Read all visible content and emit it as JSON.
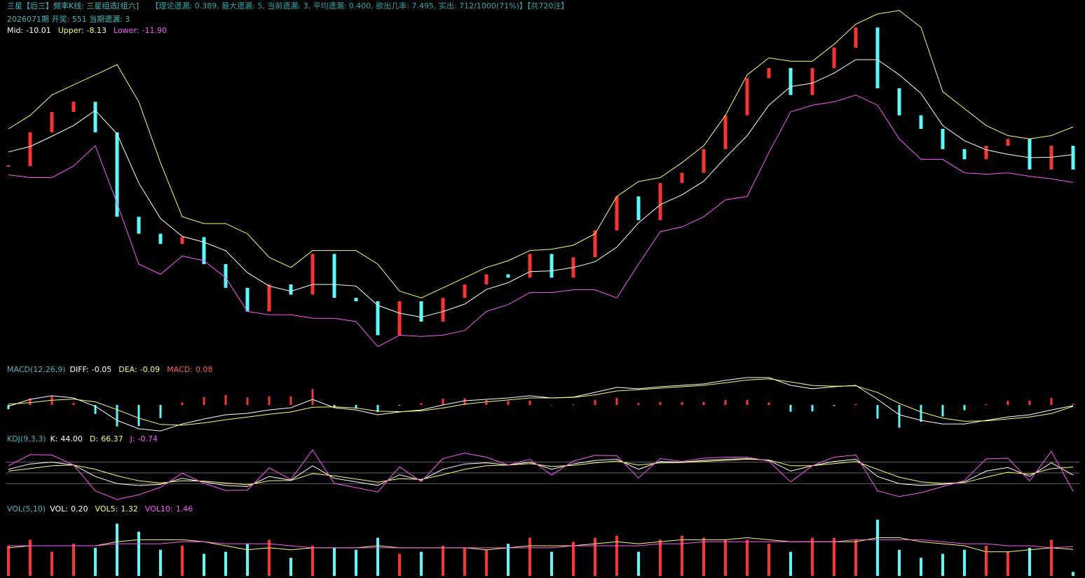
{
  "header": {
    "title": "三星【后三】频率K线: 三星组选[组六]",
    "stats": "【理论遗漏: 0.389, 最大遗漏: 5, 当前遗漏: 3, 平均遗漏: 0.400, 欲出几率: 7.495, 实出: 712/1000(71%)】【共720注】",
    "issue": "2026071期 开奖: 551 当期遗漏: 3"
  },
  "chart_data": [
    {
      "type": "kline",
      "up_color": "#ff3232",
      "down_color": "#54fcfc",
      "ylim": [
        -24,
        0
      ],
      "values": [
        -10.79,
        -8.5,
        -7.12,
        -6.43,
        -8.5,
        -14.23,
        -15.38,
        -16.07,
        -15.61,
        -17.44,
        -19.05,
        -20.65,
        -18.82,
        -19.51,
        -16.75,
        -19.73,
        -19.96,
        -22.26,
        -19.96,
        -21.34,
        -19.73,
        -18.82,
        -18.13,
        -18.36,
        -16.75,
        -18.36,
        -16.98,
        -15.15,
        -12.85,
        -14.46,
        -11.94,
        -11.25,
        -9.64,
        -7.35,
        -4.83,
        -4.14,
        -5.97,
        -4.14,
        -2.76,
        -1.39,
        -5.51,
        -7.35,
        -8.27,
        -9.64,
        -10.33,
        -9.41,
        -8.95,
        -11.02,
        -9.41,
        -11.02
      ],
      "series": [
        {
          "name": "Mid:",
          "color": "#ffffff",
          "readout": "-10.01",
          "values": [
            -9.83,
            -9.46,
            -8.77,
            -8.04,
            -7.01,
            -8.61,
            -11.94,
            -14.35,
            -15.56,
            -15.95,
            -16.53,
            -18.02,
            -18.93,
            -19.28,
            -18.82,
            -18.82,
            -18.93,
            -20.24,
            -20.77,
            -21.04,
            -20.66,
            -20.15,
            -19.16,
            -18.7,
            -17.95,
            -17.9,
            -17.67,
            -17.28,
            -16.29,
            -14.64,
            -13.41,
            -12.74,
            -11.82,
            -10.22,
            -8.73,
            -6.66,
            -5.4,
            -5.17,
            -4.48,
            -3.57,
            -3.57,
            -4.6,
            -5.86,
            -8.04,
            -9.07,
            -9.69,
            -9.99,
            -10.22,
            -10.19,
            -10.01
          ]
        },
        {
          "name": "Upper:",
          "color": "#ffff54",
          "readout": "-8.13",
          "values": [
            -8.27,
            -7.35,
            -5.97,
            -5.28,
            -4.6,
            -3.91,
            -6.43,
            -10.56,
            -14.23,
            -14.69,
            -14.69,
            -15.38,
            -16.98,
            -17.67,
            -16.52,
            -16.52,
            -16.52,
            -17.44,
            -19.27,
            -19.73,
            -19.05,
            -18.36,
            -17.67,
            -17.21,
            -16.52,
            -16.43,
            -16.16,
            -15.38,
            -12.85,
            -11.84,
            -11.57,
            -10.56,
            -9.41,
            -7.35,
            -4.6,
            -3.45,
            -3.68,
            -3.68,
            -2.53,
            -1.16,
            -0.47,
            -0.24,
            -1.38,
            -5.74,
            -6.89,
            -8.04,
            -8.72,
            -8.95,
            -8.72,
            -8.13
          ]
        },
        {
          "name": "Lower:",
          "color": "#ff54ff",
          "readout": "-11.90",
          "values": [
            -11.38,
            -11.57,
            -11.57,
            -10.79,
            -9.41,
            -13.31,
            -17.44,
            -18.13,
            -16.89,
            -17.21,
            -18.36,
            -20.65,
            -20.88,
            -20.88,
            -21.11,
            -21.11,
            -21.34,
            -23.04,
            -22.26,
            -22.35,
            -22.26,
            -21.94,
            -20.65,
            -20.19,
            -19.37,
            -19.37,
            -19.18,
            -19.18,
            -19.73,
            -17.44,
            -15.24,
            -14.92,
            -14.23,
            -13.08,
            -12.85,
            -9.87,
            -7.12,
            -6.66,
            -6.43,
            -5.97,
            -6.66,
            -8.95,
            -10.33,
            -10.33,
            -11.25,
            -11.34,
            -11.25,
            -11.48,
            -11.66,
            -11.9
          ]
        }
      ]
    },
    {
      "type": "macd",
      "title": "MACD(12,26,9)",
      "title_color": "#3cbcbc",
      "up_color": "#ff3232",
      "down_color": "#54fcfc",
      "ylim": [
        -1.8,
        1.8
      ],
      "series": [
        {
          "name": "DIFF:",
          "color": "#ffffff",
          "readout": "-0.05",
          "values": [
            -0.09,
            0.36,
            0.59,
            0.45,
            -0.09,
            -0.99,
            -1.53,
            -1.67,
            -1.22,
            -0.9,
            -0.63,
            -0.54,
            -0.32,
            -0.18,
            0.36,
            -0.18,
            -0.32,
            -0.63,
            -0.45,
            -0.32,
            0.0,
            0.27,
            0.36,
            0.45,
            0.59,
            0.45,
            0.5,
            0.81,
            1.13,
            1.04,
            1.17,
            1.26,
            1.35,
            1.58,
            1.76,
            1.76,
            1.26,
            1.04,
            1.17,
            1.26,
            0.36,
            -0.63,
            -0.99,
            -1.22,
            -1.22,
            -0.99,
            -0.77,
            -0.63,
            -0.32,
            -0.05
          ]
        },
        {
          "name": "DEA:",
          "color": "#ffff54",
          "readout": "-0.09",
          "values": [
            0.05,
            0.15,
            0.3,
            0.38,
            0.2,
            -0.3,
            -0.85,
            -1.25,
            -1.3,
            -1.15,
            -0.95,
            -0.78,
            -0.6,
            -0.45,
            -0.15,
            -0.12,
            -0.2,
            -0.4,
            -0.43,
            -0.38,
            -0.2,
            0.05,
            0.2,
            0.32,
            0.45,
            0.45,
            0.48,
            0.65,
            0.9,
            0.98,
            1.08,
            1.17,
            1.26,
            1.42,
            1.6,
            1.68,
            1.48,
            1.25,
            1.2,
            1.23,
            0.8,
            0.1,
            -0.45,
            -0.85,
            -1.05,
            -1.02,
            -0.9,
            -0.77,
            -0.55,
            -0.09
          ]
        },
        {
          "name": "MACD:",
          "color": "#ff5a5a",
          "readout": "0.08",
          "style": "bar",
          "values": [
            -0.28,
            0.42,
            0.58,
            0.14,
            -0.58,
            -1.38,
            -1.36,
            -0.84,
            0.16,
            0.5,
            0.64,
            0.48,
            0.56,
            0.54,
            1.02,
            -0.12,
            -0.24,
            -0.46,
            -0.04,
            0.12,
            0.4,
            0.44,
            0.32,
            0.26,
            0.28,
            0.0,
            0.04,
            0.32,
            0.46,
            0.12,
            0.18,
            0.18,
            0.18,
            0.32,
            0.32,
            0.16,
            -0.44,
            -0.42,
            -0.06,
            0.06,
            -0.88,
            -1.46,
            -1.08,
            -0.74,
            -0.34,
            0.06,
            0.26,
            0.28,
            0.46,
            0.08
          ]
        }
      ]
    },
    {
      "type": "kdj",
      "title": "KDJ(9,3,3)",
      "title_color": "#3cbcbc",
      "ylim": [
        -30,
        130
      ],
      "yticks": [
        20,
        50,
        80
      ],
      "grid": true,
      "series": [
        {
          "name": "K:",
          "color": "#ffffff",
          "readout": "44.00",
          "values": [
            60,
            75,
            80,
            72,
            40,
            20,
            15,
            18,
            35,
            25,
            15,
            12,
            40,
            30,
            70,
            35,
            25,
            15,
            45,
            30,
            60,
            75,
            78,
            72,
            80,
            60,
            75,
            85,
            88,
            60,
            82,
            80,
            85,
            88,
            90,
            85,
            55,
            70,
            82,
            88,
            40,
            20,
            15,
            18,
            25,
            55,
            65,
            40,
            78,
            44
          ]
        },
        {
          "name": "D:",
          "color": "#ffff54",
          "readout": "66.37",
          "values": [
            55,
            62,
            70,
            72,
            60,
            42,
            28,
            22,
            28,
            27,
            22,
            17,
            28,
            29,
            48,
            42,
            33,
            24,
            34,
            32,
            45,
            60,
            70,
            72,
            76,
            68,
            71,
            78,
            83,
            72,
            78,
            79,
            82,
            85,
            88,
            86,
            70,
            70,
            76,
            82,
            60,
            38,
            25,
            21,
            23,
            38,
            52,
            46,
            62,
            66.37
          ]
        },
        {
          "name": "J:",
          "color": "#ff54ff",
          "readout": "-0.74",
          "values": [
            70,
            101,
            100,
            72,
            0,
            -24,
            -11,
            10,
            49,
            21,
            1,
            2,
            64,
            32,
            114,
            21,
            9,
            -3,
            67,
            26,
            90,
            105,
            94,
            72,
            88,
            44,
            83,
            99,
            98,
            36,
            90,
            82,
            91,
            94,
            94,
            83,
            25,
            70,
            94,
            100,
            0,
            -16,
            -5,
            12,
            29,
            89,
            91,
            28,
            110,
            -0.74
          ]
        }
      ]
    },
    {
      "type": "vol",
      "title": "VOL(5,10)",
      "title_color": "#3cbcbc",
      "up_color": "#ff3232",
      "down_color": "#54fcfc",
      "ylim": [
        0,
        3
      ],
      "series": [
        {
          "name": "VOL:",
          "color": "#ffffff",
          "readout": "0.20",
          "style": "bar",
          "values": [
            1.5,
            1.8,
            1.2,
            1.6,
            1.4,
            2.6,
            2.2,
            1.3,
            1.5,
            1.1,
            1.2,
            1.6,
            1.8,
            0.9,
            1.5,
            1.4,
            1.3,
            1.9,
            1.1,
            1.2,
            1.5,
            1.4,
            1.3,
            1.6,
            1.9,
            1.2,
            1.7,
            1.9,
            2.0,
            1.2,
            1.8,
            2.0,
            1.9,
            1.8,
            1.8,
            1.6,
            1.2,
            1.9,
            1.9,
            1.8,
            2.8,
            1.3,
            0.9,
            1.1,
            1.3,
            1.5,
            1.2,
            1.4,
            1.8,
            0.2
          ]
        },
        {
          "name": "VOL5:",
          "color": "#ffff54",
          "readout": "1.32",
          "values": [
            1.4,
            1.5,
            1.5,
            1.5,
            1.5,
            1.7,
            1.8,
            1.8,
            1.8,
            1.7,
            1.5,
            1.3,
            1.4,
            1.3,
            1.4,
            1.4,
            1.4,
            1.5,
            1.4,
            1.4,
            1.4,
            1.4,
            1.3,
            1.4,
            1.5,
            1.5,
            1.5,
            1.6,
            1.7,
            1.6,
            1.7,
            1.8,
            1.8,
            1.8,
            1.9,
            1.8,
            1.7,
            1.7,
            1.7,
            1.7,
            1.9,
            1.9,
            1.7,
            1.6,
            1.5,
            1.2,
            1.2,
            1.3,
            1.4,
            1.32
          ]
        },
        {
          "name": "VOL10:",
          "color": "#ff54ff",
          "readout": "1.46",
          "values": [
            1.5,
            1.5,
            1.5,
            1.5,
            1.5,
            1.6,
            1.6,
            1.6,
            1.7,
            1.7,
            1.6,
            1.6,
            1.6,
            1.5,
            1.4,
            1.4,
            1.4,
            1.4,
            1.4,
            1.4,
            1.4,
            1.4,
            1.4,
            1.4,
            1.4,
            1.4,
            1.5,
            1.5,
            1.5,
            1.5,
            1.6,
            1.6,
            1.7,
            1.7,
            1.7,
            1.7,
            1.7,
            1.7,
            1.7,
            1.8,
            1.8,
            1.8,
            1.8,
            1.7,
            1.6,
            1.6,
            1.5,
            1.5,
            1.4,
            1.46
          ]
        }
      ]
    }
  ]
}
